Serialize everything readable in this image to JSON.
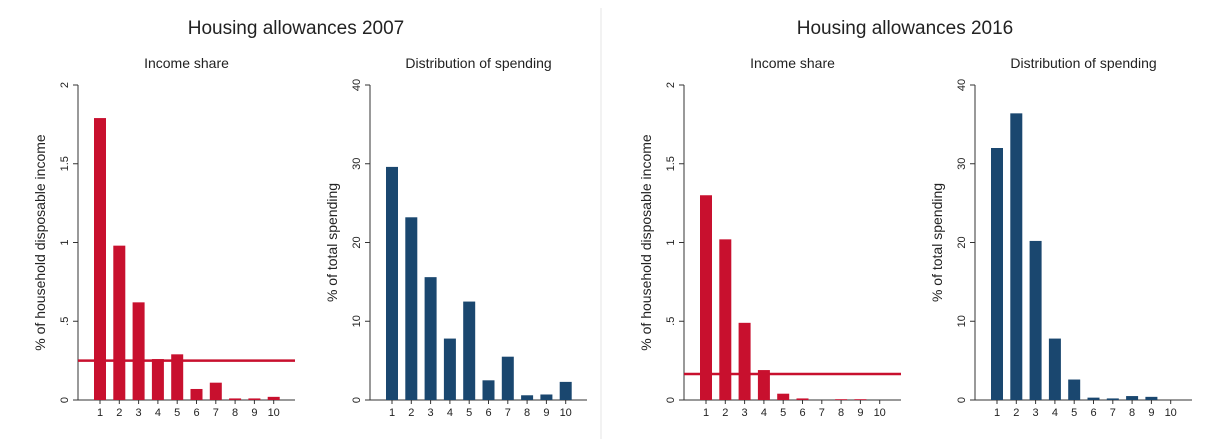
{
  "panel_titles": [
    "Housing allowances 2007",
    "Housing allowances 2016"
  ],
  "chart_data": [
    {
      "type": "bar",
      "title": "Income share",
      "ylabel": "% of household disposable income",
      "categories": [
        "1",
        "2",
        "3",
        "4",
        "5",
        "6",
        "7",
        "8",
        "9",
        "10"
      ],
      "values": [
        1.79,
        0.98,
        0.62,
        0.26,
        0.29,
        0.07,
        0.11,
        0.01,
        0.01,
        0.02
      ],
      "hline": 0.25,
      "color": "#c8102e",
      "ylim": [
        0,
        2
      ],
      "yticks": [
        0,
        {
          "value": 0.5,
          "label": ".5"
        },
        1,
        1.5,
        2
      ]
    },
    {
      "type": "bar",
      "title": "Distribution of spending",
      "ylabel": "% of total spending",
      "categories": [
        "1",
        "2",
        "3",
        "4",
        "5",
        "6",
        "7",
        "8",
        "9",
        "10"
      ],
      "values": [
        29.6,
        23.2,
        15.6,
        7.8,
        12.5,
        2.5,
        5.5,
        0.6,
        0.7,
        2.3
      ],
      "color": "#1a476f",
      "ylim": [
        0,
        40
      ],
      "yticks": [
        0,
        10,
        20,
        30,
        40
      ]
    },
    {
      "type": "bar",
      "title": "Income share",
      "ylabel": "% of household disposable income",
      "categories": [
        "1",
        "2",
        "3",
        "4",
        "5",
        "6",
        "7",
        "8",
        "9",
        "10"
      ],
      "values": [
        1.3,
        1.02,
        0.49,
        0.19,
        0.04,
        0.01,
        0,
        0.005,
        0.005,
        0
      ],
      "hline": 0.165,
      "color": "#c8102e",
      "ylim": [
        0,
        2
      ],
      "yticks": [
        0,
        {
          "value": 0.5,
          "label": ".5"
        },
        1,
        1.5,
        2
      ]
    },
    {
      "type": "bar",
      "title": "Distribution of spending",
      "ylabel": "% of total spending",
      "categories": [
        "1",
        "2",
        "3",
        "4",
        "5",
        "6",
        "7",
        "8",
        "9",
        "10"
      ],
      "values": [
        32,
        36.4,
        20.2,
        7.8,
        2.6,
        0.3,
        0.2,
        0.5,
        0.4,
        0
      ],
      "color": "#1a476f",
      "ylim": [
        0,
        40
      ],
      "yticks": [
        0,
        10,
        20,
        30,
        40
      ]
    }
  ]
}
